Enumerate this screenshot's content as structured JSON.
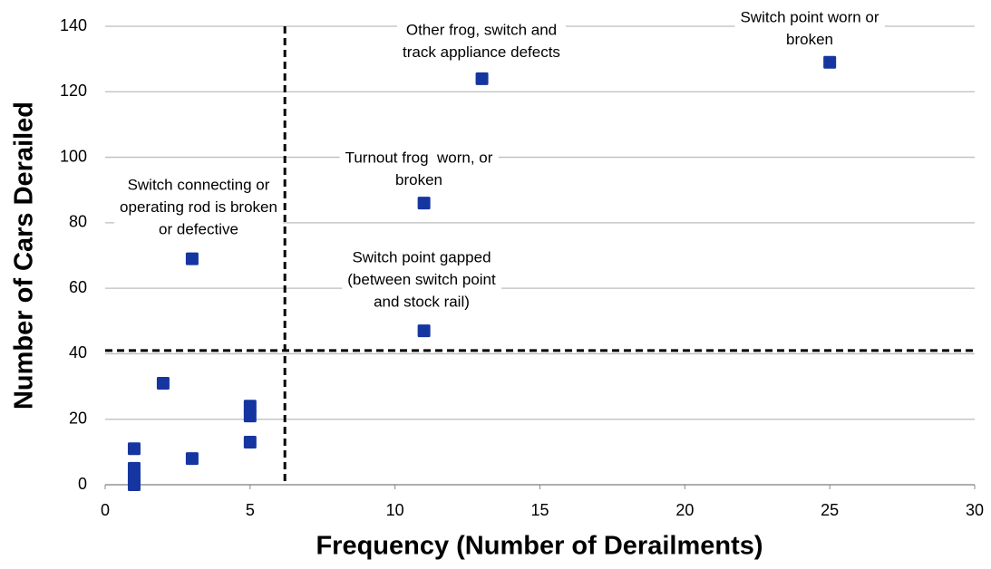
{
  "chart_data": {
    "type": "scatter",
    "x_label": "Frequency (Number of Derailments)",
    "y_label": "Number of Cars Derailed",
    "x": [
      25,
      13,
      11,
      11,
      3,
      2,
      5,
      5,
      5,
      3,
      1,
      1,
      1,
      1
    ],
    "values": [
      129,
      124,
      86,
      47,
      69,
      31,
      24,
      21,
      13,
      8,
      11,
      5,
      2,
      0
    ],
    "color": "#1535a0",
    "xlim": [
      0,
      30
    ],
    "xticks": [
      0,
      5,
      10,
      15,
      20,
      25,
      30
    ],
    "ylim": [
      0,
      140
    ],
    "yticks": [
      0,
      20,
      40,
      60,
      80,
      100,
      120,
      140
    ],
    "grid": true,
    "reference_lines": {
      "x": 6.2,
      "y": 41
    },
    "annotations": [
      {
        "lines": [
          "Switch point worn or",
          "broken"
        ]
      },
      {
        "lines": [
          "Other frog, switch and",
          "track appliance defects"
        ]
      },
      {
        "lines": [
          "Turnout frog  worn, or",
          "broken"
        ]
      },
      {
        "lines": [
          "Switch connecting or",
          "operating rod is broken",
          "or defective"
        ]
      },
      {
        "lines": [
          "Switch point gapped",
          "(between switch point",
          "and stock rail)"
        ]
      }
    ]
  }
}
